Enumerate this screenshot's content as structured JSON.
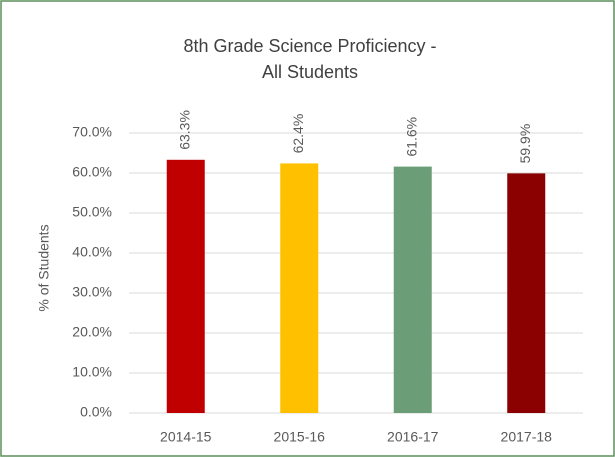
{
  "chart_data": {
    "type": "bar",
    "title": [
      "8th Grade Science Proficiency -",
      "All Students"
    ],
    "y_label": "% of Students",
    "categories": [
      "2014-15",
      "2015-16",
      "2016-17",
      "2017-18"
    ],
    "values": [
      63.3,
      62.4,
      61.6,
      59.9
    ],
    "value_labels": [
      "63.3%",
      "62.4%",
      "61.6%",
      "59.9%"
    ],
    "colors": [
      "#c00000",
      "#ffc000",
      "#6b9e77",
      "#8b0000"
    ],
    "ylim": [
      0,
      70
    ],
    "yticks": [
      {
        "value": 0,
        "label": "0.0%"
      },
      {
        "value": 10,
        "label": "10.0%"
      },
      {
        "value": 20,
        "label": "20.0%"
      },
      {
        "value": 30,
        "label": "30.0%"
      },
      {
        "value": 40,
        "label": "40.0%"
      },
      {
        "value": 50,
        "label": "50.0%"
      },
      {
        "value": 60,
        "label": "60.0%"
      },
      {
        "value": 70,
        "label": "70.0%"
      }
    ],
    "grid": true
  }
}
